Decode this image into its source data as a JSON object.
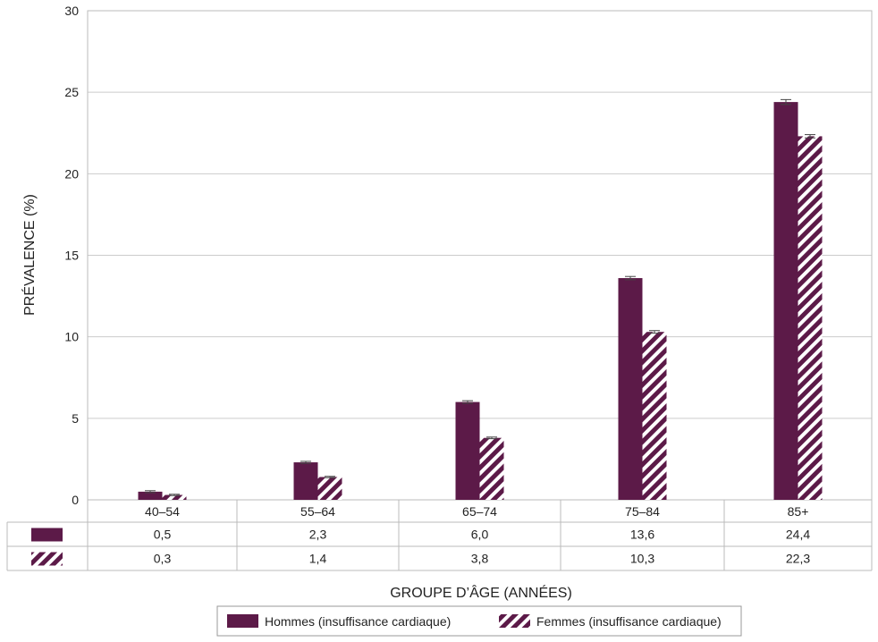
{
  "chart_data": {
    "type": "bar",
    "categories": [
      "40–54",
      "55–64",
      "65–74",
      "75–84",
      "85+"
    ],
    "series": [
      {
        "name": "Hommes (insuffisance cardiaque)",
        "values": [
          0.5,
          2.3,
          6.0,
          13.6,
          24.4
        ],
        "error": [
          0.06,
          0.06,
          0.08,
          0.1,
          0.15
        ],
        "labels": [
          "0,5",
          "2,3",
          "6,0",
          "13,6",
          "24,4"
        ],
        "color": "#5c1a48",
        "pattern": "solid"
      },
      {
        "name": "Femmes (insuffisance cardiaque)",
        "values": [
          0.3,
          1.4,
          3.8,
          10.3,
          22.3
        ],
        "error": [
          0.04,
          0.04,
          0.05,
          0.08,
          0.1
        ],
        "labels": [
          "0,3",
          "1,4",
          "3,8",
          "10,3",
          "22,3"
        ],
        "color": "#5c1a48",
        "pattern": "diagonal-stripes"
      }
    ],
    "yticks": [
      "0",
      "5",
      "10",
      "15",
      "20",
      "25",
      "30"
    ],
    "ylim": [
      0,
      30
    ],
    "ylabel": "PRÉVALENCE (%)",
    "xlabel": "GROUPE D’ÂGE (ANNÉES)",
    "grid": true,
    "legend": "bottom-center",
    "data_table": true
  }
}
